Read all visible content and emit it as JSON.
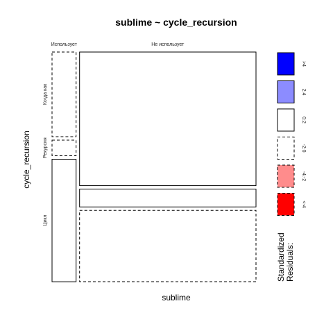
{
  "chart_data": {
    "type": "mosaic",
    "title": "sublime ~ cycle_recursion",
    "xlabel": "sublime",
    "ylabel": "cycle_recursion",
    "x_categories": [
      "Использует",
      "Не использует"
    ],
    "y_categories": [
      "Когда как",
      "Рекурсия",
      "Цикл"
    ],
    "cells": [
      {
        "x": "Использует",
        "y": "Когда как",
        "residual_class": "-2:0"
      },
      {
        "x": "Использует",
        "y": "Рекурсия",
        "residual_class": "-2:0"
      },
      {
        "x": "Использует",
        "y": "Цикл",
        "residual_class": "0:2"
      },
      {
        "x": "Не использует",
        "y": "Когда как",
        "residual_class": "0:2"
      },
      {
        "x": "Не использует",
        "y": "Рекурсия",
        "residual_class": "0:2"
      },
      {
        "x": "Не использует",
        "y": "Цикл",
        "residual_class": "-2:0"
      }
    ],
    "x_proportions": [
      0.12,
      0.88
    ],
    "conditional_y_proportions": {
      "Использует": [
        0.38,
        0.07,
        0.55
      ],
      "Не использует": [
        0.6,
        0.08,
        0.32
      ]
    },
    "legend": {
      "title_lines": [
        "Standardized",
        "Residuals:"
      ],
      "items": [
        {
          "label": ">4",
          "fill": "#0000ff",
          "dashed": false
        },
        {
          "label": "2:4",
          "fill": "#8c8cff",
          "dashed": false
        },
        {
          "label": "0:2",
          "fill": "#ffffff",
          "dashed": false
        },
        {
          "label": "-2:0",
          "fill": "#ffffff",
          "dashed": true
        },
        {
          "label": "-4:-2",
          "fill": "#ff8c8c",
          "dashed": true
        },
        {
          "label": "<-4",
          "fill": "#ff0000",
          "dashed": true
        }
      ]
    }
  }
}
